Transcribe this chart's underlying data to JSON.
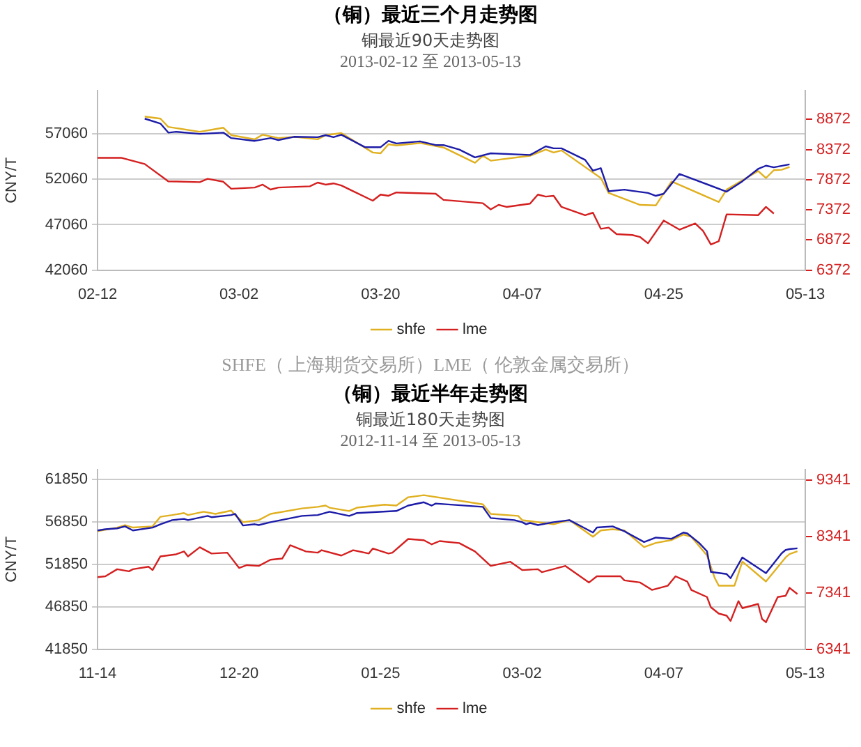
{
  "chart_data": [
    {
      "type": "line",
      "title": "（铜）最近三个月走势图",
      "subtitle": "铜最近90天走势图\n2013-02-12 至 2013-05-13",
      "ylabel": "CNY/T",
      "annotations": [
        "SHFE（ 上海期货交易所）LME（ 伦敦金属交易所）"
      ],
      "xlim": [
        "2013-02-12",
        "2013-05-13"
      ],
      "xticks": [
        {
          "value": "2013-02-12",
          "label": "02-12"
        },
        {
          "value": "2013-03-02",
          "label": "03-02"
        },
        {
          "value": "2013-03-20",
          "label": "03-20"
        },
        {
          "value": "2013-04-07",
          "label": "04-07"
        },
        {
          "value": "2013-04-25",
          "label": "04-25"
        },
        {
          "value": "2013-05-13",
          "label": "05-13"
        }
      ],
      "ylim": [
        42060,
        61830
      ],
      "yticks": [
        42060,
        47060,
        52060,
        57060
      ],
      "y2lim": [
        6372,
        9350
      ],
      "y2ticks": [
        6372,
        6872,
        7372,
        7872,
        8372,
        8872
      ],
      "grid": "y",
      "legend": "bottom",
      "marker": "none",
      "line_style": "solid",
      "series": [
        {
          "color": "#1c1ca8",
          "x": [
            "2013-02-18",
            "2013-02-20",
            "2013-02-21",
            "2013-02-22",
            "2013-02-25",
            "2013-02-28",
            "2013-03-01",
            "2013-03-04",
            "2013-03-06",
            "2013-03-07",
            "2013-03-09",
            "2013-03-12",
            "2013-03-13",
            "2013-03-14",
            "2013-03-15",
            "2013-03-18",
            "2013-03-20",
            "2013-03-21",
            "2013-03-22",
            "2013-03-25",
            "2013-03-27",
            "2013-03-28",
            "2013-03-30",
            "2013-04-01",
            "2013-04-03",
            "2013-04-08",
            "2013-04-10",
            "2013-04-11",
            "2013-04-12",
            "2013-04-15",
            "2013-04-16",
            "2013-04-17",
            "2013-04-18",
            "2013-04-20",
            "2013-04-21",
            "2013-04-23",
            "2013-04-24",
            "2013-04-25",
            "2013-04-27",
            "2013-05-03",
            "2013-05-05",
            "2013-05-07",
            "2013-05-08",
            "2013-05-09",
            "2013-05-11"
          ],
          "values": [
            58740,
            58200,
            57200,
            57290,
            57060,
            57200,
            56600,
            56290,
            56600,
            56380,
            56740,
            56700,
            56920,
            56700,
            56970,
            55600,
            55600,
            56290,
            56010,
            56240,
            55830,
            55830,
            55330,
            54470,
            54920,
            54740,
            55690,
            55470,
            55470,
            54200,
            53010,
            53290,
            50740,
            50920,
            50790,
            50560,
            50240,
            50470,
            52650,
            50700,
            51840,
            53200,
            53560,
            53380,
            53700
          ]
        },
        {
          "name": "shfe",
          "color": "#e0b020",
          "x": [
            "2013-02-18",
            "2013-02-20",
            "2013-02-21",
            "2013-02-25",
            "2013-02-28",
            "2013-03-01",
            "2013-03-04",
            "2013-03-05",
            "2013-03-07",
            "2013-03-09",
            "2013-03-12",
            "2013-03-13",
            "2013-03-15",
            "2013-03-19",
            "2013-03-20",
            "2013-03-21",
            "2013-03-22",
            "2013-03-25",
            "2013-03-28",
            "2013-04-01",
            "2013-04-02",
            "2013-04-03",
            "2013-04-08",
            "2013-04-10",
            "2013-04-11",
            "2013-04-12",
            "2013-04-17",
            "2013-04-18",
            "2013-04-22",
            "2013-04-24",
            "2013-04-26",
            "2013-05-02",
            "2013-05-03",
            "2013-05-07",
            "2013-05-08",
            "2013-05-09",
            "2013-05-10",
            "2013-05-11"
          ],
          "values": [
            58970,
            58740,
            57830,
            57290,
            57740,
            56920,
            56470,
            56970,
            56600,
            56740,
            56470,
            56920,
            57150,
            55010,
            54920,
            55920,
            55790,
            56060,
            55560,
            53880,
            54650,
            54110,
            54650,
            55330,
            55010,
            55240,
            52200,
            50560,
            49240,
            49190,
            51830,
            49560,
            50920,
            52970,
            52200,
            53060,
            53110,
            53420
          ]
        },
        {
          "name": "lme",
          "color": "#d42020",
          "axis": "y2",
          "x": [
            "2013-02-12",
            "2013-02-15",
            "2013-02-18",
            "2013-02-21",
            "2013-02-25",
            "2013-02-26",
            "2013-02-28",
            "2013-03-01",
            "2013-03-04",
            "2013-03-05",
            "2013-03-06",
            "2013-03-07",
            "2013-03-11",
            "2013-03-12",
            "2013-03-13",
            "2013-03-14",
            "2013-03-15",
            "2013-03-19",
            "2013-03-20",
            "2013-03-21",
            "2013-03-22",
            "2013-03-27",
            "2013-03-28",
            "2013-04-02",
            "2013-04-03",
            "2013-04-04",
            "2013-04-05",
            "2013-04-08",
            "2013-04-09",
            "2013-04-10",
            "2013-04-11",
            "2013-04-12",
            "2013-04-15",
            "2013-04-16",
            "2013-04-17",
            "2013-04-18",
            "2013-04-19",
            "2013-04-21",
            "2013-04-22",
            "2013-04-23",
            "2013-04-25",
            "2013-04-27",
            "2013-04-29",
            "2013-04-30",
            "2013-05-01",
            "2013-05-02",
            "2013-05-03",
            "2013-05-07",
            "2013-05-08",
            "2013-05-09"
          ],
          "values": [
            8235,
            8235,
            8132,
            7845,
            7831,
            7886,
            7838,
            7721,
            7742,
            7790,
            7708,
            7742,
            7762,
            7824,
            7790,
            7810,
            7776,
            7523,
            7625,
            7605,
            7660,
            7639,
            7536,
            7481,
            7379,
            7454,
            7420,
            7475,
            7625,
            7591,
            7605,
            7420,
            7283,
            7324,
            7057,
            7077,
            6968,
            6954,
            6920,
            6817,
            7194,
            7043,
            7146,
            7023,
            6796,
            6851,
            7296,
            7283,
            7420,
            7310
          ]
        }
      ]
    },
    {
      "type": "line",
      "title": "（铜）最近半年走势图",
      "subtitle": "铜最近180天走势图\n2012-11-14 至 2013-05-13",
      "ylabel": "CNY/T",
      "xlim": [
        "2012-11-14",
        "2013-05-13"
      ],
      "xticks": [
        {
          "value": "2012-11-14",
          "label": "11-14"
        },
        {
          "value": "2012-12-20",
          "label": "12-20"
        },
        {
          "value": "2013-01-25",
          "label": "01-25"
        },
        {
          "value": "2013-03-02",
          "label": "03-02"
        },
        {
          "value": "2013-04-07",
          "label": "04-07"
        },
        {
          "value": "2013-05-13",
          "label": "05-13"
        }
      ],
      "ylim": [
        41850,
        63000
      ],
      "yticks": [
        41850,
        46850,
        51850,
        56850,
        61850
      ],
      "y2lim": [
        6341,
        9520
      ],
      "y2ticks": [
        6341,
        7341,
        8341,
        9341
      ],
      "grid": "y",
      "legend": "bottom",
      "marker": "none",
      "line_style": "solid",
      "series": [
        {
          "color": "#1c1ca8",
          "x": [
            "2012-11-14",
            "2012-11-16",
            "2012-11-19",
            "2012-11-21",
            "2012-11-23",
            "2012-11-28",
            "2012-11-30",
            "2012-12-03",
            "2012-12-06",
            "2012-12-07",
            "2012-12-12",
            "2012-12-13",
            "2012-12-18",
            "2012-12-19",
            "2012-12-21",
            "2012-12-24",
            "2012-12-25",
            "2012-12-28",
            "2013-01-05",
            "2013-01-09",
            "2013-01-12",
            "2013-01-17",
            "2013-01-19",
            "2013-01-29",
            "2013-02-01",
            "2013-02-05",
            "2013-02-07",
            "2013-02-08",
            "2013-02-20",
            "2013-02-22",
            "2013-02-28",
            "2013-03-02",
            "2013-03-03",
            "2013-03-04",
            "2013-03-06",
            "2013-03-10",
            "2013-03-14",
            "2013-03-18",
            "2013-03-20",
            "2013-03-21",
            "2013-03-25",
            "2013-03-28",
            "2013-04-02",
            "2013-04-05",
            "2013-04-09",
            "2013-04-12",
            "2013-04-13",
            "2013-04-16",
            "2013-04-18",
            "2013-04-19",
            "2013-04-23",
            "2013-04-24",
            "2013-04-27",
            "2013-05-03",
            "2013-05-07",
            "2013-05-08",
            "2013-05-09",
            "2013-05-11"
          ],
          "values": [
            55840,
            55980,
            56080,
            56320,
            55840,
            56180,
            56570,
            57060,
            57200,
            57060,
            57550,
            57400,
            57650,
            57790,
            56420,
            56570,
            56470,
            56810,
            57550,
            57650,
            58040,
            57550,
            57890,
            58130,
            58770,
            59160,
            58770,
            59010,
            58620,
            57300,
            57060,
            56810,
            56570,
            56720,
            56470,
            56810,
            57060,
            56080,
            55590,
            56180,
            56320,
            55740,
            54470,
            55000,
            54860,
            55590,
            55490,
            54370,
            53390,
            50950,
            50700,
            50210,
            52660,
            50800,
            53150,
            53540,
            53640,
            53730
          ]
        },
        {
          "name": "shfe",
          "color": "#e0b020",
          "x": [
            "2012-11-14",
            "2012-11-19",
            "2012-11-21",
            "2012-11-23",
            "2012-11-28",
            "2012-11-30",
            "2012-12-03",
            "2012-12-06",
            "2012-12-07",
            "2012-12-11",
            "2012-12-14",
            "2012-12-18",
            "2012-12-19",
            "2012-12-21",
            "2012-12-25",
            "2012-12-28",
            "2013-01-05",
            "2013-01-09",
            "2013-01-11",
            "2013-01-12",
            "2013-01-17",
            "2013-01-19",
            "2013-01-26",
            "2013-01-29",
            "2013-02-01",
            "2013-02-05",
            "2013-02-20",
            "2013-02-22",
            "2013-03-01",
            "2013-03-02",
            "2013-03-06",
            "2013-03-10",
            "2013-03-14",
            "2013-03-20",
            "2013-03-22",
            "2013-03-25",
            "2013-03-28",
            "2013-04-02",
            "2013-04-05",
            "2013-04-09",
            "2013-04-12",
            "2013-04-14",
            "2013-04-18",
            "2013-04-20",
            "2013-04-21",
            "2013-04-25",
            "2013-04-27",
            "2013-05-03",
            "2013-05-08",
            "2013-05-09",
            "2013-05-11"
          ],
          "values": [
            55740,
            56180,
            56470,
            56180,
            56320,
            57450,
            57650,
            57890,
            57650,
            58040,
            57790,
            58180,
            57650,
            56810,
            57060,
            57790,
            58430,
            58620,
            58770,
            58520,
            58130,
            58520,
            58870,
            58770,
            59750,
            59990,
            58920,
            57790,
            57550,
            57060,
            56810,
            56570,
            57060,
            55100,
            55840,
            55980,
            55840,
            53880,
            54370,
            54710,
            55350,
            55100,
            52900,
            50210,
            49330,
            49330,
            52170,
            49820,
            52660,
            53050,
            53390
          ]
        },
        {
          "name": "lme",
          "color": "#d42020",
          "axis": "y2",
          "x": [
            "2012-11-14",
            "2012-11-16",
            "2012-11-19",
            "2012-11-22",
            "2012-11-23",
            "2012-11-27",
            "2012-11-28",
            "2012-11-30",
            "2012-12-04",
            "2012-12-06",
            "2012-12-07",
            "2012-12-10",
            "2012-12-13",
            "2012-12-17",
            "2012-12-20",
            "2012-12-22",
            "2012-12-25",
            "2012-12-28",
            "2012-12-31",
            "2013-01-02",
            "2013-01-06",
            "2013-01-09",
            "2013-01-10",
            "2013-01-15",
            "2013-01-18",
            "2013-01-22",
            "2013-01-23",
            "2013-01-27",
            "2013-01-28",
            "2013-02-01",
            "2013-02-05",
            "2013-02-07",
            "2013-02-09",
            "2013-02-14",
            "2013-02-18",
            "2013-02-22",
            "2013-02-27",
            "2013-03-02",
            "2013-03-06",
            "2013-03-07",
            "2013-03-13",
            "2013-03-19",
            "2013-03-21",
            "2013-03-27",
            "2013-03-28",
            "2013-04-01",
            "2013-04-04",
            "2013-04-08",
            "2013-04-10",
            "2013-04-13",
            "2013-04-14",
            "2013-04-18",
            "2013-04-19",
            "2013-04-21",
            "2013-04-23",
            "2013-04-24",
            "2013-04-26",
            "2013-04-27",
            "2013-05-01",
            "2013-05-02",
            "2013-05-03",
            "2013-05-06",
            "2013-05-08",
            "2013-05-09",
            "2013-05-11"
          ],
          "values": [
            7617,
            7632,
            7757,
            7720,
            7757,
            7801,
            7742,
            7984,
            8021,
            8072,
            7984,
            8145,
            8035,
            8050,
            7779,
            7830,
            7815,
            7925,
            7947,
            8182,
            8072,
            8050,
            8094,
            7999,
            8094,
            8035,
            8123,
            8035,
            8050,
            8292,
            8270,
            8197,
            8255,
            8219,
            8072,
            7815,
            7889,
            7742,
            7757,
            7705,
            7815,
            7522,
            7632,
            7632,
            7559,
            7522,
            7390,
            7463,
            7632,
            7537,
            7390,
            7265,
            7082,
            6972,
            6935,
            6840,
            7192,
            7067,
            7141,
            6876,
            6818,
            7265,
            7287,
            7427,
            7317
          ]
        }
      ]
    }
  ]
}
